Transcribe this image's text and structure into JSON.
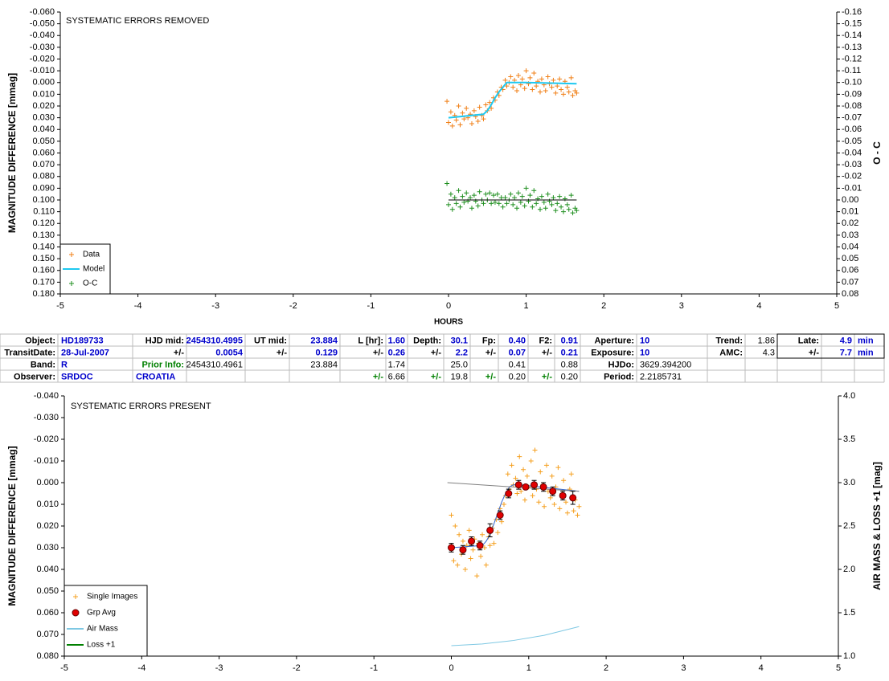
{
  "chart_data": [
    {
      "type": "scatter",
      "title": "SYSTEMATIC ERRORS REMOVED",
      "x_label": "HOURS",
      "y_label": "MAGNITUDE DIFFERENCE [mmag]",
      "y2_label": "O - C",
      "xlim": [
        -5,
        5
      ],
      "xticks": [
        -5,
        -4,
        -3,
        -2,
        -1,
        0,
        1,
        2,
        3,
        4,
        5
      ],
      "ylim": [
        0.18,
        -0.06
      ],
      "yticks": [
        {
          "value": -0.06,
          "label": "-0.060"
        },
        {
          "value": -0.05,
          "label": "-0.050"
        },
        {
          "value": -0.04,
          "label": "-0.040"
        },
        {
          "value": -0.03,
          "label": "-0.030"
        },
        {
          "value": -0.02,
          "label": "-0.020"
        },
        {
          "value": -0.01,
          "label": "-0.010"
        },
        {
          "value": 0,
          "label": "0.000"
        },
        {
          "value": 0.01,
          "label": "0.010"
        },
        {
          "value": 0.02,
          "label": "0.020"
        },
        {
          "value": 0.03,
          "label": "0.030"
        },
        {
          "value": 0.04,
          "label": "0.040"
        },
        {
          "value": 0.05,
          "label": "0.050"
        },
        {
          "value": 0.06,
          "label": "0.060"
        },
        {
          "value": 0.07,
          "label": "0.070"
        },
        {
          "value": 0.08,
          "label": "0.080"
        },
        {
          "value": 0.09,
          "label": "0.090"
        },
        {
          "value": 0.1,
          "label": "0.100"
        },
        {
          "value": 0.11,
          "label": "0.110"
        },
        {
          "value": 0.12,
          "label": "0.120"
        },
        {
          "value": 0.13,
          "label": "0.130"
        },
        {
          "value": 0.14,
          "label": "0.140"
        },
        {
          "value": 0.15,
          "label": "0.150"
        },
        {
          "value": 0.16,
          "label": "0.160"
        },
        {
          "value": 0.17,
          "label": "0.170"
        },
        {
          "value": 0.18,
          "label": "0.180"
        }
      ],
      "y2lim": [
        0.08,
        -0.16
      ],
      "y2ticks": [
        -0.16,
        -0.15,
        -0.14,
        -0.13,
        -0.12,
        -0.11,
        {
          "value": -0.1,
          "label": "-0.10"
        },
        -0.09,
        -0.08,
        -0.07,
        -0.06,
        -0.05,
        -0.04,
        -0.03,
        -0.02,
        -0.01,
        {
          "value": 0,
          "label": "0.00"
        },
        0.01,
        0.02,
        0.03,
        0.04,
        0.05,
        0.06,
        0.07,
        0.08
      ],
      "legend": "lower left",
      "series": [
        {
          "name": "Data",
          "type": "scatter",
          "color": "#f07f16",
          "x": [
            -0.02,
            0.0,
            0.03,
            0.05,
            0.08,
            0.1,
            0.13,
            0.15,
            0.18,
            0.2,
            0.23,
            0.25,
            0.28,
            0.3,
            0.33,
            0.35,
            0.38,
            0.4,
            0.43,
            0.45,
            0.48,
            0.5,
            0.53,
            0.55,
            0.58,
            0.6,
            0.63,
            0.65,
            0.68,
            0.7,
            0.73,
            0.75,
            0.78,
            0.8,
            0.83,
            0.85,
            0.88,
            0.9,
            0.93,
            0.95,
            0.98,
            1.0,
            1.03,
            1.05,
            1.08,
            1.1,
            1.13,
            1.15,
            1.18,
            1.2,
            1.23,
            1.25,
            1.28,
            1.3,
            1.33,
            1.35,
            1.38,
            1.4,
            1.43,
            1.45,
            1.48,
            1.5,
            1.53,
            1.55,
            1.58,
            1.6,
            1.63,
            1.65
          ],
          "values": [
            0.016,
            0.034,
            0.025,
            0.037,
            0.028,
            0.032,
            0.02,
            0.036,
            0.026,
            0.031,
            0.022,
            0.03,
            0.027,
            0.035,
            0.024,
            0.029,
            0.033,
            0.021,
            0.028,
            0.031,
            0.019,
            0.024,
            0.017,
            0.022,
            0.013,
            0.015,
            0.008,
            0.011,
            0.004,
            0.006,
            -0.002,
            0.003,
            0.0,
            -0.005,
            0.004,
            -0.002,
            0.007,
            -0.006,
            0.002,
            -0.003,
            0.005,
            -0.01,
            0.001,
            -0.004,
            0.006,
            -0.008,
            0.003,
            -0.001,
            0.008,
            -0.003,
            0.002,
            0.007,
            -0.005,
            0.001,
            0.004,
            -0.002,
            0.009,
            0.003,
            -0.003,
            0.006,
            0.01,
            -0.001,
            0.004,
            0.008,
            -0.004,
            0.011,
            0.007,
            0.009
          ]
        },
        {
          "name": "Model",
          "type": "line",
          "color": "#1ec8f0",
          "x": [
            0,
            0.45,
            0.5,
            0.55,
            0.6,
            0.65,
            0.7,
            0.75,
            1.0,
            1.65
          ],
          "values": [
            0.03,
            0.027,
            0.024,
            0.019,
            0.013,
            0.008,
            0.004,
            0.0,
            0.0,
            0.001
          ]
        },
        {
          "name": "O-C",
          "type": "scatter",
          "color": "#1f8f1f",
          "axis": "y2",
          "x": [
            -0.02,
            0.0,
            0.03,
            0.05,
            0.08,
            0.1,
            0.13,
            0.15,
            0.18,
            0.2,
            0.23,
            0.25,
            0.28,
            0.3,
            0.33,
            0.35,
            0.38,
            0.4,
            0.43,
            0.45,
            0.48,
            0.5,
            0.53,
            0.55,
            0.58,
            0.6,
            0.63,
            0.65,
            0.68,
            0.7,
            0.73,
            0.75,
            0.78,
            0.8,
            0.83,
            0.85,
            0.88,
            0.9,
            0.93,
            0.95,
            0.98,
            1.0,
            1.03,
            1.05,
            1.08,
            1.1,
            1.13,
            1.15,
            1.18,
            1.2,
            1.23,
            1.25,
            1.28,
            1.3,
            1.33,
            1.35,
            1.38,
            1.4,
            1.43,
            1.45,
            1.48,
            1.5,
            1.53,
            1.55,
            1.58,
            1.6,
            1.63,
            1.65
          ],
          "values": [
            -0.014,
            0.004,
            -0.005,
            0.008,
            -0.002,
            0.003,
            -0.008,
            0.006,
            -0.003,
            0.002,
            -0.006,
            0.001,
            -0.002,
            0.007,
            -0.004,
            0.001,
            0.005,
            -0.007,
            0.0,
            0.003,
            -0.005,
            0.0,
            -0.006,
            0.003,
            -0.004,
            0.002,
            -0.005,
            0.003,
            -0.002,
            0.006,
            -0.002,
            0.003,
            0.0,
            -0.005,
            0.004,
            -0.002,
            0.007,
            -0.006,
            0.002,
            -0.003,
            0.005,
            -0.01,
            0.001,
            -0.004,
            0.006,
            -0.008,
            0.003,
            -0.001,
            0.008,
            -0.003,
            0.002,
            0.007,
            -0.005,
            0.001,
            0.004,
            -0.002,
            0.009,
            0.003,
            -0.003,
            0.006,
            0.01,
            -0.001,
            0.004,
            0.008,
            -0.004,
            0.011,
            0.007,
            0.009
          ]
        },
        {
          "type": "line",
          "color": "#000000",
          "axis": "y2",
          "x": [
            0,
            1.65
          ],
          "values": [
            0,
            0
          ]
        }
      ]
    },
    {
      "type": "scatter",
      "title": "SYSTEMATIC ERRORS PRESENT",
      "y_label": "MAGNITUDE DIFFERENCE [mmag]",
      "y2_label": "AIR MASS & LOSS +1 [mag]",
      "xlim": [
        -5,
        5
      ],
      "xticks": [
        -5,
        -4,
        -3,
        -2,
        -1,
        0,
        1,
        2,
        3,
        4,
        5
      ],
      "ylim": [
        0.08,
        -0.04
      ],
      "yticks": [
        {
          "value": -0.04,
          "label": "-0.040"
        },
        {
          "value": -0.03,
          "label": "-0.030"
        },
        {
          "value": -0.02,
          "label": "-0.020"
        },
        {
          "value": -0.01,
          "label": "-0.010"
        },
        {
          "value": 0,
          "label": "0.000"
        },
        {
          "value": 0.01,
          "label": "0.010"
        },
        {
          "value": 0.02,
          "label": "0.020"
        },
        {
          "value": 0.03,
          "label": "0.030"
        },
        {
          "value": 0.04,
          "label": "0.040"
        },
        {
          "value": 0.05,
          "label": "0.050"
        },
        {
          "value": 0.06,
          "label": "0.060"
        },
        {
          "value": 0.07,
          "label": "0.070"
        },
        {
          "value": 0.08,
          "label": "0.080"
        }
      ],
      "y2lim": [
        1.0,
        4.0
      ],
      "y2ticks": [
        {
          "value": 1,
          "label": "1.0"
        },
        1.5,
        {
          "value": 2,
          "label": "2.0"
        },
        2.5,
        {
          "value": 3,
          "label": "3.0"
        },
        3.5,
        {
          "value": 4,
          "label": "4.0"
        }
      ],
      "legend": "lower left",
      "series": [
        {
          "name": "Single Images",
          "type": "scatter",
          "color": "#f5a020",
          "x": [
            0.0,
            0.03,
            0.05,
            0.08,
            0.1,
            0.13,
            0.15,
            0.18,
            0.2,
            0.23,
            0.25,
            0.28,
            0.3,
            0.33,
            0.35,
            0.38,
            0.4,
            0.43,
            0.45,
            0.48,
            0.5,
            0.53,
            0.55,
            0.58,
            0.6,
            0.63,
            0.65,
            0.68,
            0.7,
            0.73,
            0.75,
            0.78,
            0.8,
            0.83,
            0.85,
            0.88,
            0.9,
            0.93,
            0.95,
            0.98,
            1.0,
            1.03,
            1.05,
            1.08,
            1.1,
            1.13,
            1.15,
            1.18,
            1.2,
            1.23,
            1.25,
            1.28,
            1.3,
            1.33,
            1.35,
            1.38,
            1.4,
            1.43,
            1.45,
            1.48,
            1.5,
            1.53,
            1.55,
            1.58,
            1.6,
            1.63,
            1.65
          ],
          "values": [
            0.015,
            0.036,
            0.02,
            0.038,
            0.024,
            0.033,
            0.027,
            0.04,
            0.029,
            0.022,
            0.035,
            0.031,
            0.026,
            0.043,
            0.028,
            0.034,
            0.024,
            0.03,
            0.038,
            0.025,
            0.029,
            0.021,
            0.028,
            0.017,
            0.023,
            0.012,
            0.018,
            0.01,
            0.006,
            -0.004,
            0.003,
            -0.008,
            0.001,
            -0.002,
            0.005,
            -0.012,
            0.004,
            -0.006,
            0.008,
            -0.003,
            0.002,
            -0.01,
            0.006,
            -0.015,
            0.003,
            0.009,
            -0.005,
            0.001,
            0.011,
            -0.008,
            0.004,
            0.007,
            -0.003,
            0.01,
            0.002,
            -0.007,
            0.012,
            0.005,
            -0.001,
            0.009,
            0.014,
            0.003,
            -0.004,
            0.013,
            0.008,
            0.015,
            0.011
          ]
        },
        {
          "type": "line",
          "color": "#3366cc",
          "x": [
            0,
            0.4,
            0.45,
            0.5,
            0.55,
            0.6,
            0.65,
            0.7,
            0.75,
            0.8,
            0.9,
            1.65
          ],
          "values": [
            0.03,
            0.029,
            0.027,
            0.024,
            0.019,
            0.014,
            0.009,
            0.005,
            0.002,
            0.001,
            0.001,
            0.004
          ]
        },
        {
          "type": "line",
          "color": "#808080",
          "axis": "y2",
          "x": [
            -0.05,
            1.65
          ],
          "values": [
            3.0,
            2.9
          ]
        },
        {
          "name": "Grp Avg",
          "type": "errorbar",
          "color": "#e00000",
          "x": [
            0.0,
            0.15,
            0.26,
            0.37,
            0.5,
            0.63,
            0.74,
            0.87,
            0.96,
            1.07,
            1.19,
            1.31,
            1.44,
            1.57
          ],
          "values": [
            0.03,
            0.031,
            0.027,
            0.029,
            0.022,
            0.015,
            0.005,
            0.001,
            0.002,
            0.001,
            0.002,
            0.004,
            0.006,
            0.007
          ],
          "errors": [
            0.002,
            0.002,
            0.002,
            0.002,
            0.003,
            0.002,
            0.002,
            0.002,
            0.001,
            0.002,
            0.002,
            0.002,
            0.002,
            0.003
          ]
        },
        {
          "name": "Air Mass",
          "type": "line",
          "color": "#7ec8e3",
          "axis": "y2",
          "x": [
            0,
            0.4,
            0.8,
            1.2,
            1.65
          ],
          "values": [
            1.12,
            1.14,
            1.18,
            1.24,
            1.34
          ]
        },
        {
          "name": "Loss +1",
          "type": "line",
          "color": "#008000",
          "axis": "y2",
          "x": [],
          "values": []
        }
      ]
    }
  ],
  "table": {
    "rows": [
      [
        "Object:",
        "HD189733",
        "HJD mid:",
        "2454310.4995",
        "UT mid:",
        "23.884",
        "L [hr]:",
        "1.60",
        "Depth:",
        "30.1",
        "Fp:",
        "0.40",
        "F2:",
        "0.91",
        "Aperture:",
        "10",
        "Trend:",
        "1.86",
        "Late:",
        "4.9",
        "min"
      ],
      [
        "TransitDate:",
        "28-Jul-2007",
        "+/-",
        "0.0054",
        "+/-",
        "0.129",
        "+/-",
        "0.26",
        "+/-",
        "2.2",
        "+/-",
        "0.07",
        "+/-",
        "0.21",
        "Exposure:",
        "10",
        "AMC:",
        "4.3",
        "+/-",
        "7.7",
        "min"
      ],
      [
        "Band:",
        "R",
        "Prior Info:",
        "2454310.4961",
        null,
        "23.884",
        null,
        "1.74",
        null,
        "25.0",
        null,
        "0.41",
        null,
        "0.88",
        "HJDo:",
        "3629.394200",
        null,
        null,
        null,
        null,
        null
      ],
      [
        "Observer:",
        "SRDOC",
        "CROATIA",
        null,
        null,
        null,
        "+/-",
        "6.66",
        "+/-",
        "19.8",
        "+/-",
        "0.20",
        "+/-",
        "0.20",
        "Period:",
        "2.2185731",
        null,
        null,
        null,
        null,
        null
      ]
    ]
  }
}
